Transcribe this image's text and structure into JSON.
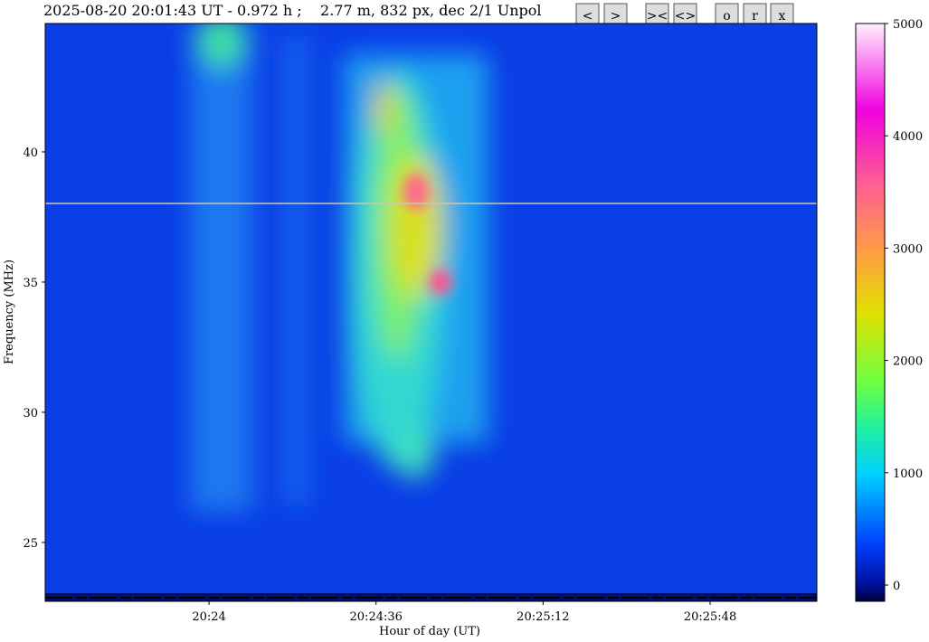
{
  "chart_data": {
    "type": "heatmap",
    "title": "2025-08-20 20:01:43 UT - 0.972 h ;    2.77 m, 832 px, dec 2/1 Unpol",
    "xlabel": "Hour of day (UT)",
    "ylabel": "Frequency (MHz)",
    "xlim": [
      73404.7,
      73571
    ],
    "xticks": [
      {
        "value": 73440,
        "label": "20:24"
      },
      {
        "value": 73476,
        "label": "20:24:36"
      },
      {
        "value": 73512,
        "label": "20:25:12"
      },
      {
        "value": 73548,
        "label": "20:25:48"
      }
    ],
    "ylim": [
      22.74,
      44.93
    ],
    "yticks": [
      25,
      30,
      35,
      40
    ],
    "colorbar": {
      "lim": [
        -145,
        5000
      ],
      "ticks": [
        0,
        1000,
        2000,
        3000,
        4000,
        5000
      ]
    }
  },
  "toolbar": {
    "buttons": [
      "<",
      ">",
      "><",
      "<>",
      "o",
      "r",
      "x"
    ]
  }
}
